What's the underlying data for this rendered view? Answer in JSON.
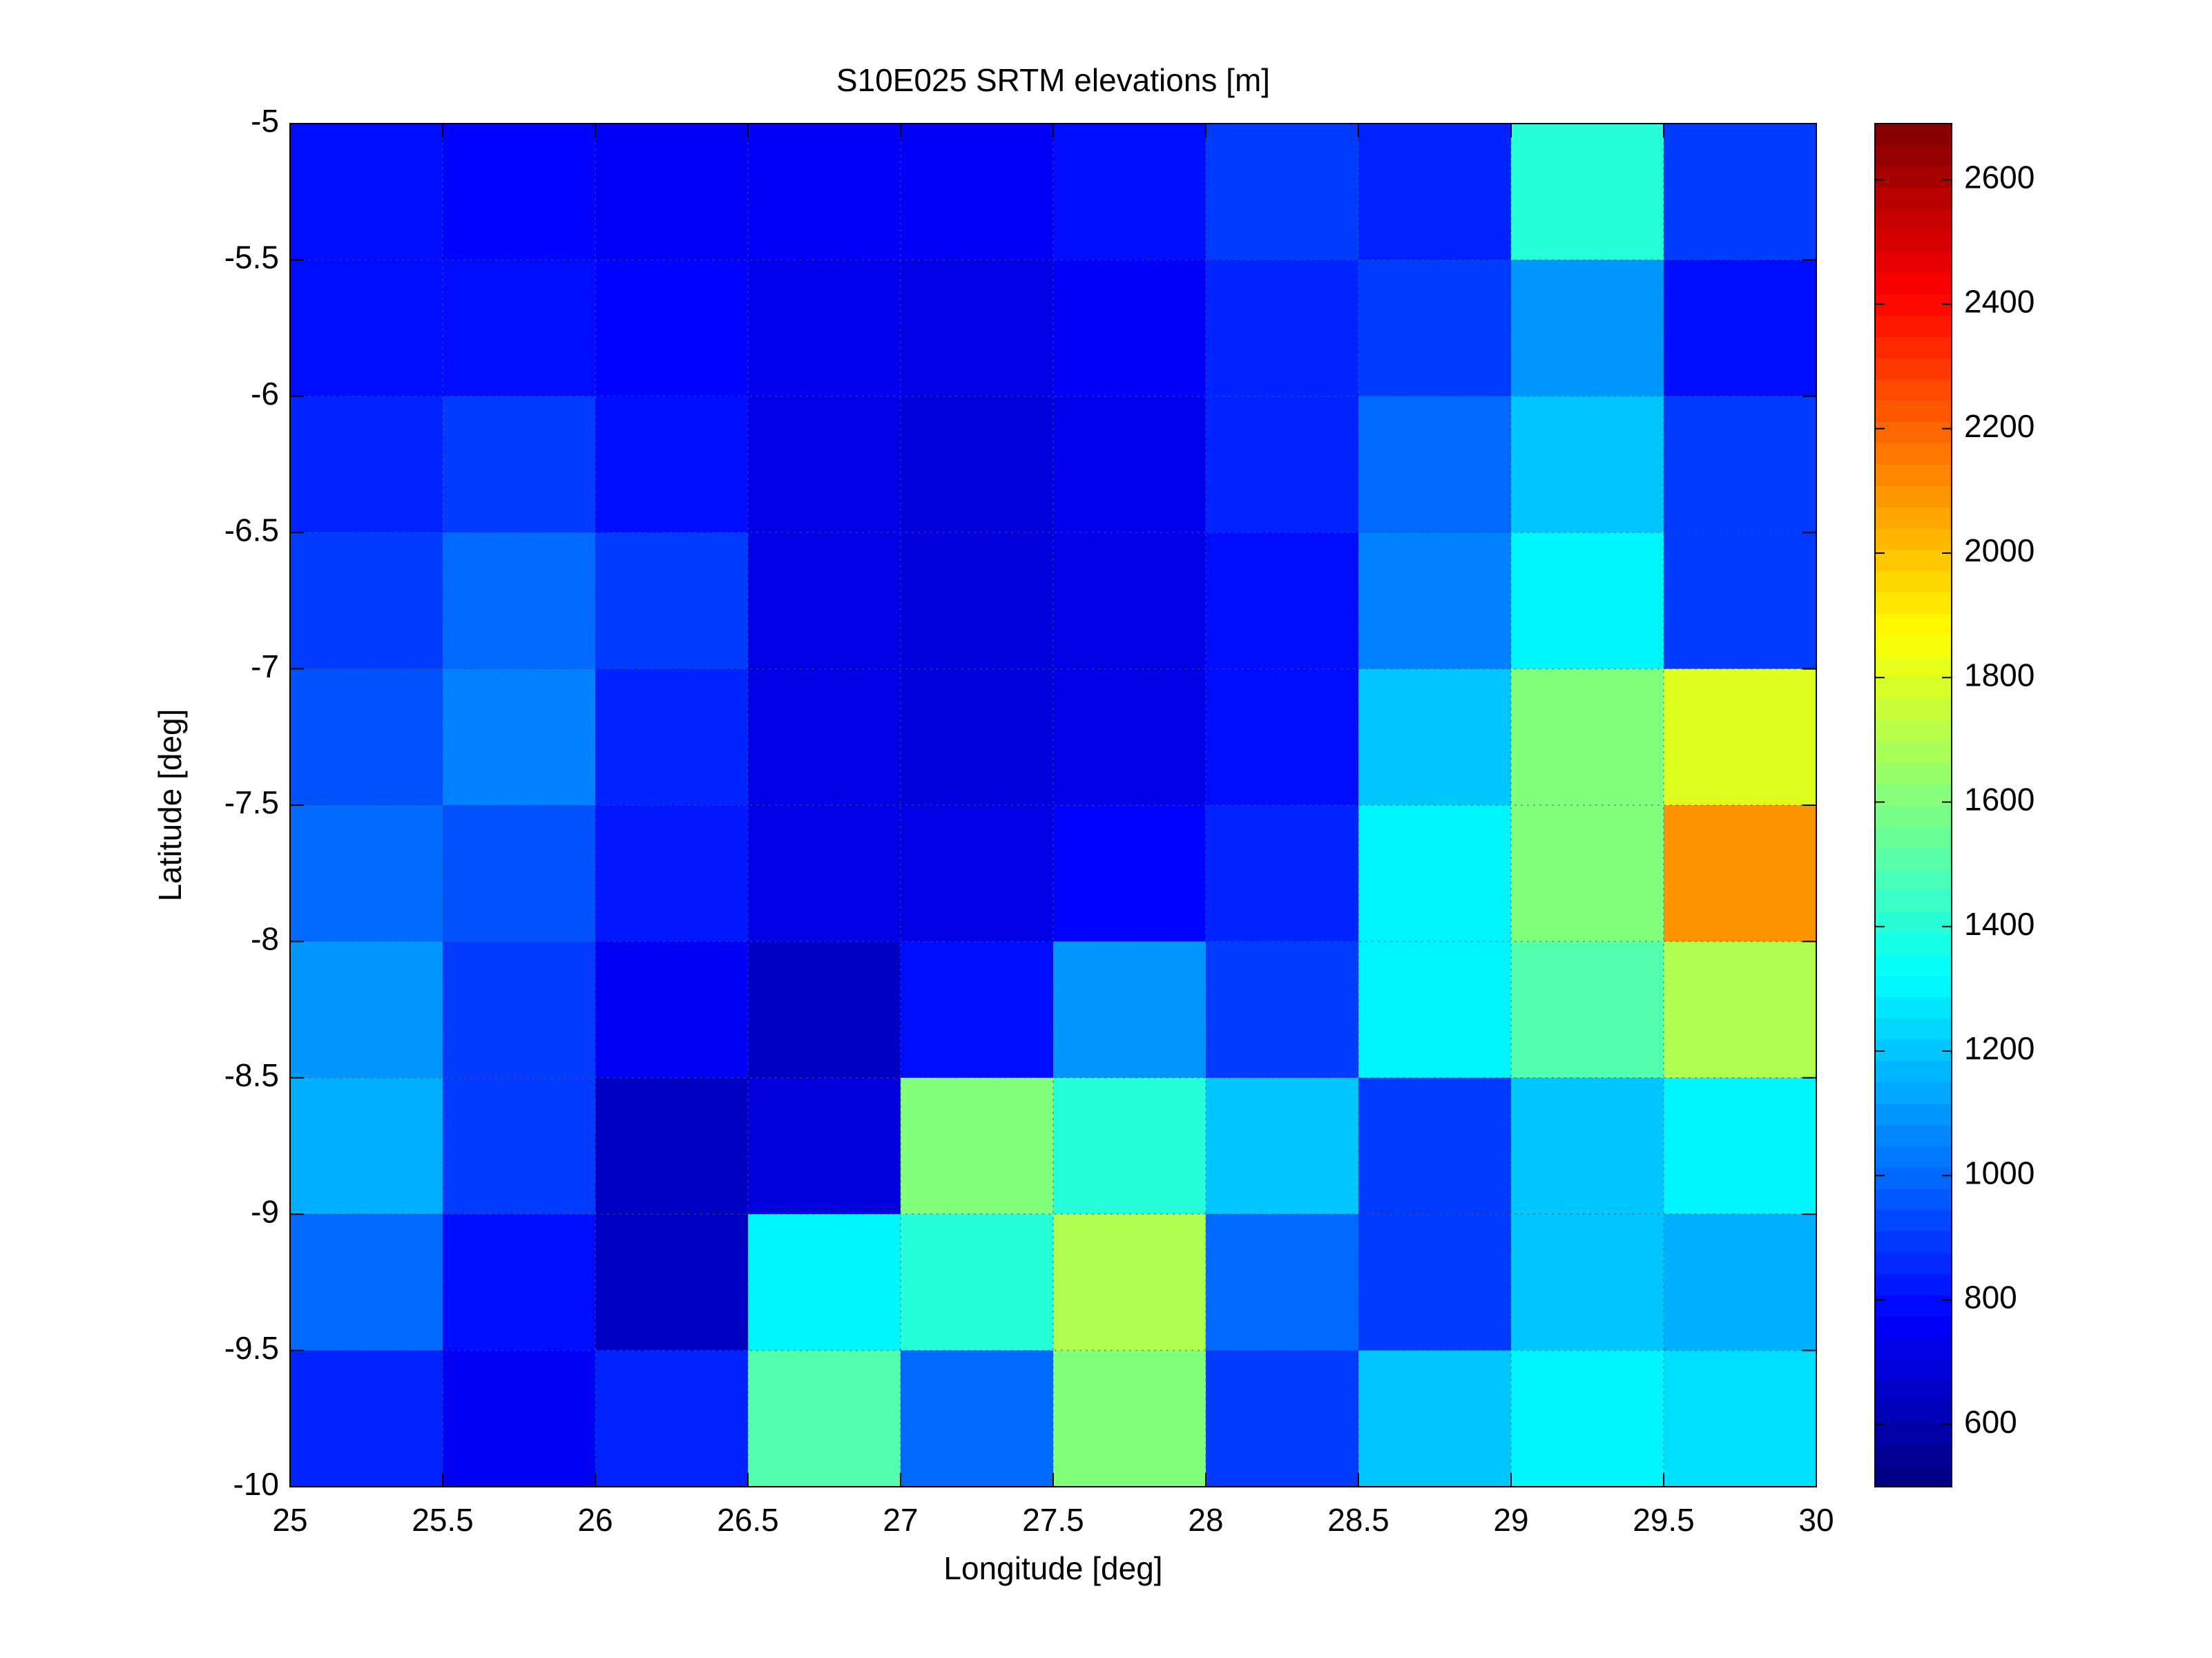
{
  "chart_data": {
    "type": "heatmap",
    "title": "S10E025 SRTM elevations [m]",
    "xlabel": "Longitude [deg]",
    "ylabel": "Latitude [deg]",
    "xlim": [
      25,
      30
    ],
    "ylim": [
      -10,
      -5
    ],
    "xticks": [
      25,
      25.5,
      26,
      26.5,
      27,
      27.5,
      28,
      28.5,
      29,
      29.5,
      30
    ],
    "yticks": [
      -10,
      -9.5,
      -9,
      -8.5,
      -8,
      -7.5,
      -7,
      -6.5,
      -6,
      -5.5,
      -5
    ],
    "clim": [
      500,
      2690
    ],
    "cticks": [
      600,
      800,
      1000,
      1200,
      1400,
      1600,
      1800,
      2000,
      2200,
      2400,
      2600
    ],
    "colormap": "jet",
    "grid": true,
    "z": [
      [
        800,
        780,
        760,
        760,
        760,
        800,
        900,
        850,
        1400,
        900
      ],
      [
        800,
        800,
        780,
        740,
        720,
        760,
        850,
        900,
        1100,
        800
      ],
      [
        850,
        900,
        800,
        720,
        700,
        740,
        850,
        1000,
        1200,
        900
      ],
      [
        900,
        1000,
        900,
        720,
        700,
        720,
        800,
        1050,
        1300,
        900
      ],
      [
        950,
        1050,
        850,
        720,
        700,
        720,
        800,
        1200,
        1600,
        1800
      ],
      [
        1000,
        950,
        820,
        720,
        720,
        780,
        850,
        1300,
        1600,
        2100
      ],
      [
        1100,
        900,
        750,
        650,
        800,
        1100,
        900,
        1300,
        1500,
        1700
      ],
      [
        1150,
        900,
        650,
        700,
        1600,
        1400,
        1200,
        900,
        1200,
        1300
      ],
      [
        1000,
        800,
        650,
        1300,
        1400,
        1700,
        1000,
        900,
        1200,
        1150
      ],
      [
        850,
        750,
        850,
        1500,
        1000,
        1600,
        900,
        1200,
        1300,
        1250
      ]
    ]
  }
}
